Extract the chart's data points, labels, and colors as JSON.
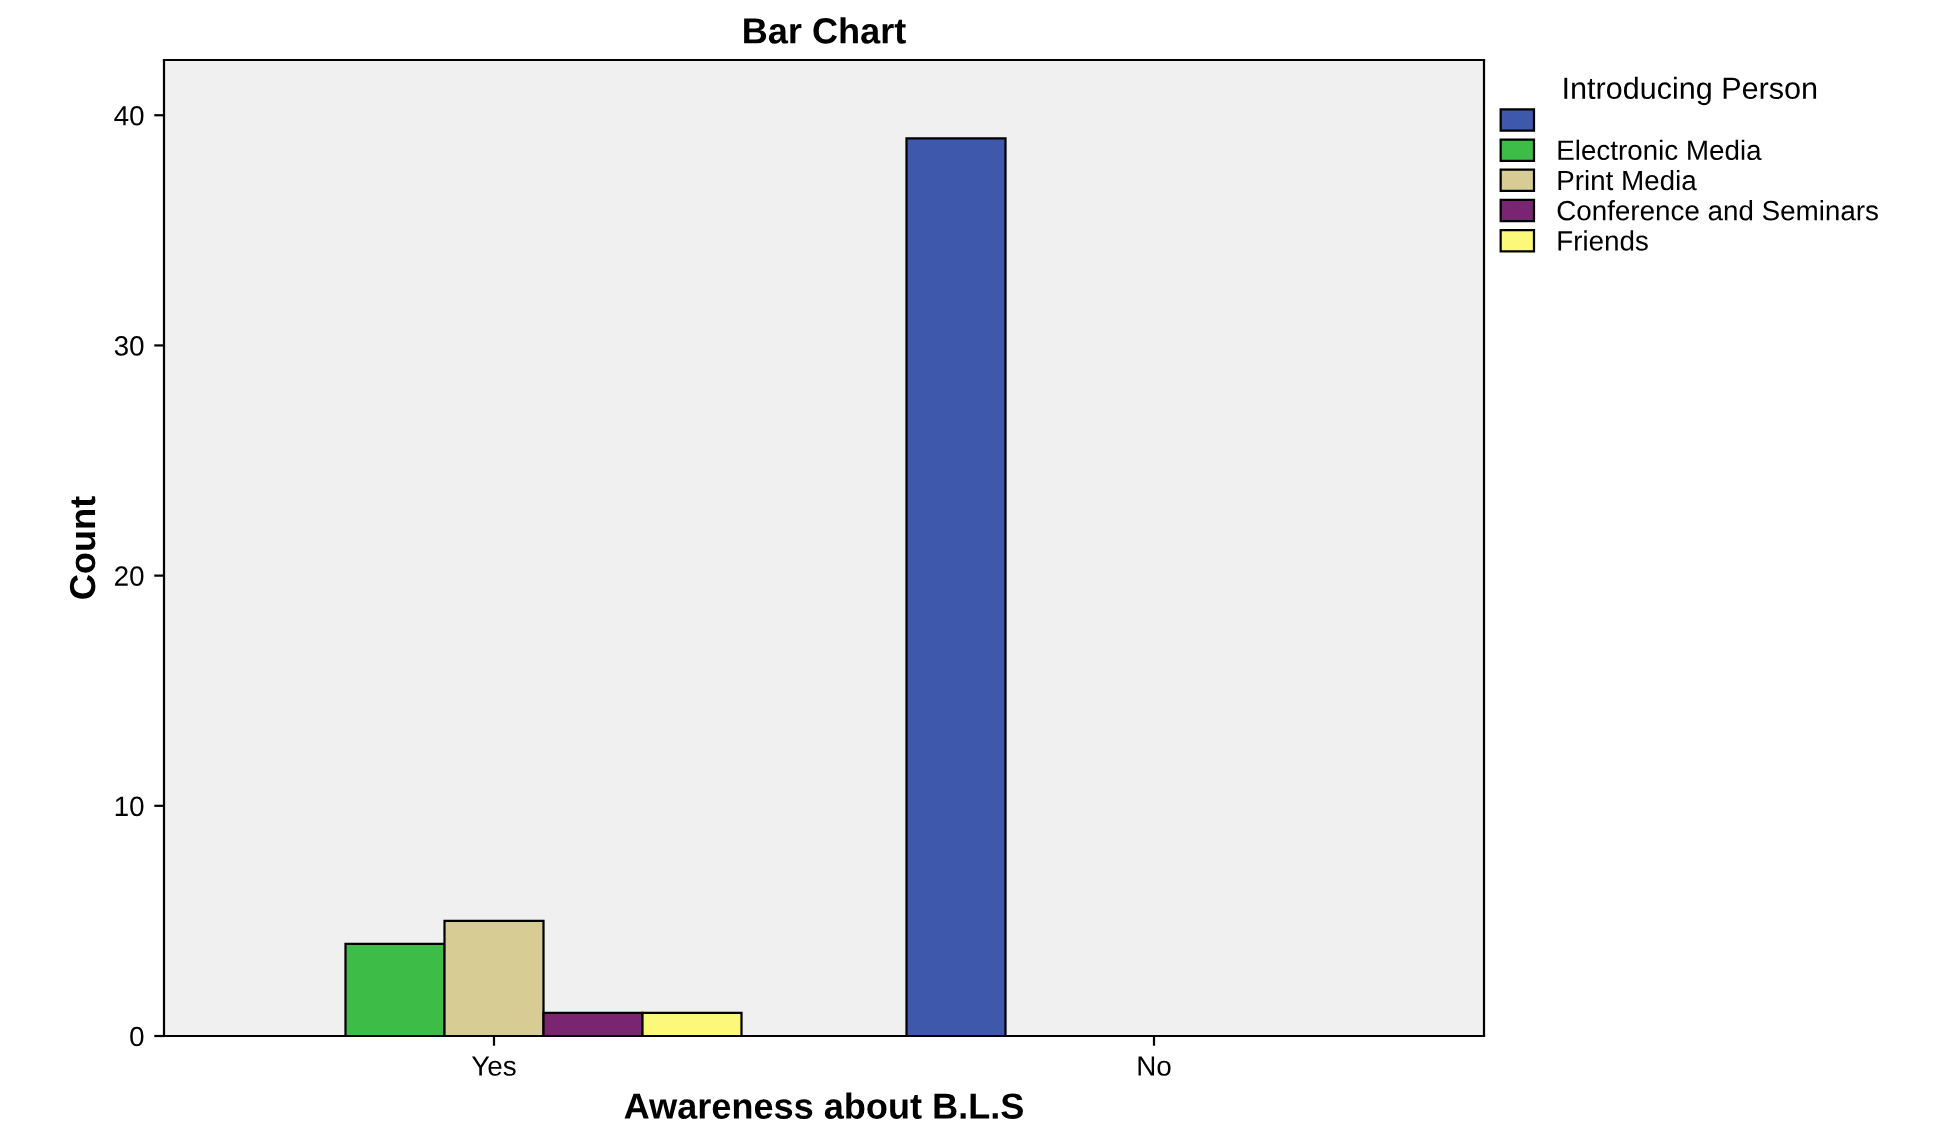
{
  "chart_data": {
    "type": "bar",
    "title": "Bar Chart",
    "xlabel": "Awareness about B.L.S",
    "ylabel": "Count",
    "legend_title": "Introducing Person",
    "legend": "top right",
    "grid": false,
    "categories": [
      "Yes",
      "No"
    ],
    "ylim": [
      0,
      42.4
    ],
    "yticks": [
      0,
      10,
      20,
      30,
      40
    ],
    "series": [
      {
        "color": "#3e58ac",
        "values": [
          null,
          39
        ]
      },
      {
        "name": "Electronic Media",
        "color": "#3ebc48",
        "values": [
          4,
          null
        ]
      },
      {
        "name": "Print Media",
        "color": "#d6cc94",
        "values": [
          5,
          null
        ]
      },
      {
        "name": "Conference and Seminars",
        "color": "#7a2571",
        "values": [
          1,
          null
        ]
      },
      {
        "name": "Friends",
        "color": "#fbf87a",
        "values": [
          1,
          null
        ]
      }
    ]
  }
}
